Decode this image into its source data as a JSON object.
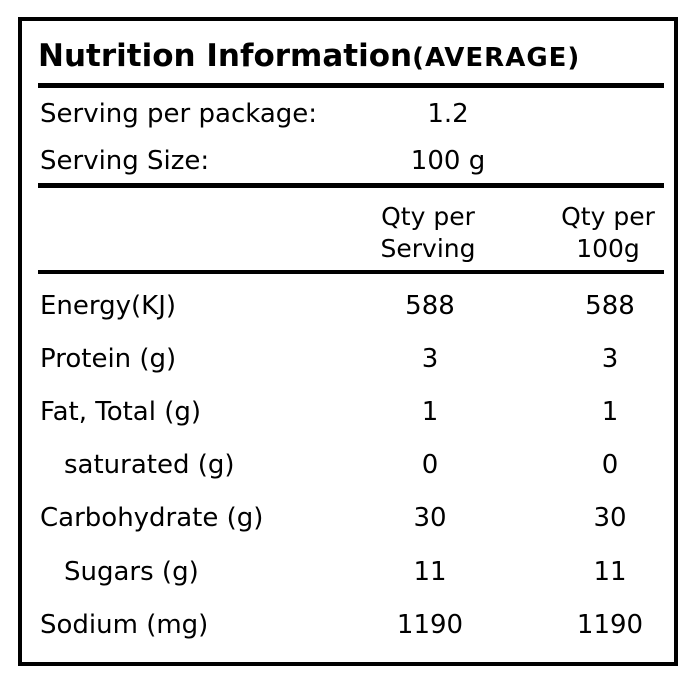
{
  "title": {
    "main": "Nutrition Information",
    "qualifier": "(AVERAGE)"
  },
  "serving": {
    "per_package_label": "Serving per package:",
    "per_package_value": "1.2",
    "size_label": "Serving Size:",
    "size_value": "100 g"
  },
  "columns": {
    "per_serving_line1": "Qty per",
    "per_serving_line2": "Serving",
    "per_100g_line1": "Qty per",
    "per_100g_line2": "100g"
  },
  "rows": [
    {
      "label": "Energy(KJ)",
      "per_serving": "588",
      "per_100g": "588"
    },
    {
      "label": "Protein (g)",
      "per_serving": "3",
      "per_100g": "3"
    },
    {
      "label": "Fat, Total (g)",
      "per_serving": "1",
      "per_100g": "1"
    },
    {
      "label": "saturated (g)",
      "per_serving": "0",
      "per_100g": "0"
    },
    {
      "label": "Carbohydrate (g)",
      "per_serving": "30",
      "per_100g": "30"
    },
    {
      "label": "Sugars (g)",
      "per_serving": "11",
      "per_100g": "11"
    },
    {
      "label": "Sodium (mg)",
      "per_serving": "1190",
      "per_100g": "1190"
    }
  ]
}
